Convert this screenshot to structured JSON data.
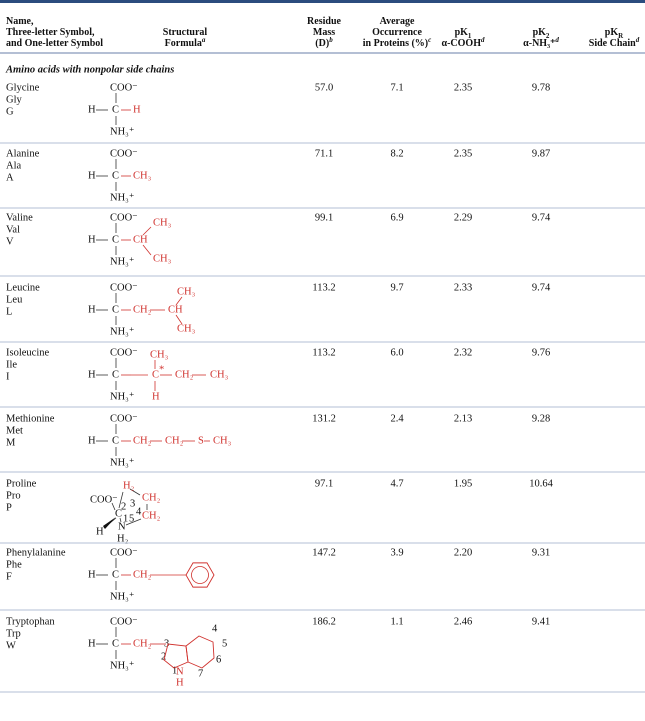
{
  "header": {
    "columns": [
      {
        "lines": [
          "Name,",
          "Three-letter Symbol,",
          "and One-letter Symbol"
        ]
      },
      {
        "lines": [
          "Structural",
          "Formula"
        ],
        "note": "a"
      },
      {
        "lines": [
          "Residue",
          "Mass",
          "(D)"
        ],
        "note": "b"
      },
      {
        "lines": [
          "Average",
          "Occurrence",
          "in Proteins (%)"
        ],
        "note": "c"
      },
      {
        "lines": [
          "pK",
          "α-COOH"
        ],
        "sub": "1",
        "note": "d"
      },
      {
        "lines": [
          "pK",
          "α-NH₃⁺"
        ],
        "sub": "2",
        "note": "d"
      },
      {
        "lines": [
          "pK",
          "Side Chain"
        ],
        "sub": "R",
        "note": "d"
      }
    ]
  },
  "section": "Amino acids with nonpolar side chains",
  "table": {
    "rows": [
      {
        "name": "Glycine",
        "three": "Gly",
        "one": "G",
        "mass": "57.0",
        "occurrence": "7.1",
        "pk1": "2.35",
        "pk2": "9.78",
        "formula": [
          "COO⁻",
          "H",
          "C",
          "NH₃⁺",
          "H"
        ]
      },
      {
        "name": "Alanine",
        "three": "Ala",
        "one": "A",
        "mass": "71.1",
        "occurrence": "8.2",
        "pk1": "2.35",
        "pk2": "9.87",
        "formula": [
          "COO⁻",
          "H",
          "C",
          "NH₃⁺",
          "CH₃"
        ]
      },
      {
        "name": "Valine",
        "three": "Val",
        "one": "V",
        "mass": "99.1",
        "occurrence": "6.9",
        "pk1": "2.29",
        "pk2": "9.74",
        "formula": [
          "COO⁻",
          "H",
          "C",
          "NH₃⁺",
          "CH",
          "CH₃",
          "CH₃"
        ]
      },
      {
        "name": "Leucine",
        "three": "Leu",
        "one": "L",
        "mass": "113.2",
        "occurrence": "9.7",
        "pk1": "2.33",
        "pk2": "9.74",
        "formula": [
          "COO⁻",
          "H",
          "C",
          "NH₃⁺",
          "CH₂",
          "CH",
          "CH₃",
          "CH₃"
        ]
      },
      {
        "name": "Isoleucine",
        "three": "Ile",
        "one": "I",
        "mass": "113.2",
        "occurrence": "6.0",
        "pk1": "2.32",
        "pk2": "9.76",
        "formula": [
          "COO⁻",
          "H",
          "C",
          "NH₃⁺",
          "CH₃",
          "C",
          "*",
          "CH₂",
          "CH₃",
          "H"
        ]
      },
      {
        "name": "Methionine",
        "three": "Met",
        "one": "M",
        "mass": "131.2",
        "occurrence": "2.4",
        "pk1": "2.13",
        "pk2": "9.28",
        "formula": [
          "COO⁻",
          "H",
          "C",
          "NH₃⁺",
          "CH₂",
          "CH₂",
          "S",
          "CH₃"
        ]
      },
      {
        "name": "Proline",
        "three": "Pro",
        "one": "P",
        "mass": "97.1",
        "occurrence": "4.7",
        "pk1": "1.95",
        "pk2": "10.64",
        "formula": [
          "COO⁻",
          "C",
          "N",
          "H",
          "H₂",
          "H₂",
          "CH₂",
          "CH₂",
          "1",
          "2",
          "3",
          "4",
          "5"
        ]
      },
      {
        "name": "Phenylalanine",
        "three": "Phe",
        "one": "F",
        "mass": "147.2",
        "occurrence": "3.9",
        "pk1": "2.20",
        "pk2": "9.31",
        "formula": [
          "COO⁻",
          "H",
          "C",
          "NH₃⁺",
          "CH₂"
        ]
      },
      {
        "name": "Tryptophan",
        "three": "Trp",
        "one": "W",
        "mass": "186.2",
        "occurrence": "1.1",
        "pk1": "2.46",
        "pk2": "9.41",
        "formula": [
          "COO⁻",
          "H",
          "C",
          "NH₃⁺",
          "CH₂",
          "N",
          "H",
          "1",
          "2",
          "3",
          "4",
          "5",
          "6",
          "7"
        ]
      }
    ]
  }
}
